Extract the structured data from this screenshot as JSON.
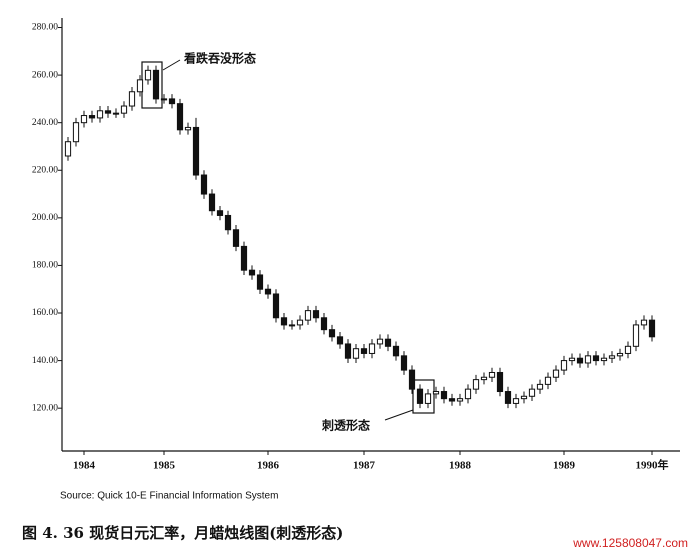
{
  "chart_data": {
    "type": "candlestick",
    "categories": [
      null,
      null,
      "1984",
      null,
      null,
      null,
      null,
      null,
      null,
      null,
      null,
      null,
      "1985",
      null,
      null,
      null,
      null,
      null,
      null,
      null,
      null,
      null,
      null,
      null,
      null,
      "1986",
      null,
      null,
      null,
      null,
      null,
      null,
      null,
      null,
      null,
      null,
      null,
      "1987",
      null,
      null,
      null,
      null,
      null,
      null,
      null,
      null,
      null,
      null,
      null,
      "1988",
      null,
      null,
      null,
      null,
      null,
      null,
      null,
      null,
      null,
      null,
      null,
      null,
      "1989",
      null,
      null,
      null,
      null,
      null,
      null,
      null,
      null,
      null,
      null,
      "1990年"
    ],
    "open": [
      226,
      232,
      240,
      243,
      242,
      245,
      244,
      244,
      247,
      253,
      258,
      262,
      250,
      250,
      248,
      237,
      238,
      218,
      210,
      203,
      201,
      195,
      188,
      178,
      176,
      170,
      168,
      158,
      155,
      155,
      157,
      161,
      158,
      153,
      150,
      147,
      141,
      145,
      143,
      147,
      149,
      146,
      142,
      136,
      128,
      122,
      126,
      127,
      124,
      123,
      124,
      128,
      132,
      133,
      135,
      127,
      122,
      124,
      125,
      128,
      130,
      133,
      136,
      140,
      141,
      139,
      142,
      140,
      141,
      142,
      143,
      146,
      155,
      157
    ],
    "high": [
      234,
      242,
      245,
      245,
      247,
      247,
      246,
      249,
      255,
      260,
      264,
      264,
      252,
      252,
      250,
      240,
      242,
      220,
      212,
      205,
      203,
      197,
      190,
      180,
      178,
      172,
      170,
      160,
      157,
      159,
      163,
      163,
      160,
      155,
      152,
      149,
      147,
      147,
      149,
      151,
      151,
      148,
      144,
      138,
      130,
      128,
      129,
      129,
      126,
      126,
      130,
      134,
      135,
      137,
      137,
      129,
      126,
      127,
      130,
      132,
      135,
      138,
      142,
      143,
      143,
      144,
      144,
      143,
      144,
      145,
      148,
      157,
      159,
      159
    ],
    "low": [
      224,
      230,
      238,
      240,
      240,
      242,
      242,
      242,
      245,
      251,
      256,
      248,
      248,
      246,
      235,
      235,
      216,
      208,
      201,
      199,
      193,
      186,
      176,
      174,
      168,
      166,
      156,
      153,
      153,
      153,
      155,
      156,
      151,
      148,
      145,
      139,
      139,
      141,
      141,
      145,
      144,
      140,
      134,
      126,
      120,
      120,
      124,
      122,
      121,
      121,
      122,
      126,
      130,
      131,
      125,
      120,
      120,
      122,
      123,
      126,
      128,
      131,
      134,
      138,
      137,
      137,
      138,
      138,
      139,
      140,
      141,
      144,
      153,
      148
    ],
    "close": [
      232,
      240,
      243,
      242,
      245,
      244,
      244,
      247,
      253,
      258,
      262,
      250,
      250,
      248,
      237,
      238,
      218,
      210,
      203,
      201,
      195,
      188,
      178,
      176,
      170,
      168,
      158,
      155,
      155,
      157,
      161,
      158,
      153,
      150,
      147,
      141,
      145,
      143,
      147,
      149,
      146,
      142,
      136,
      128,
      122,
      126,
      127,
      124,
      123,
      124,
      128,
      132,
      133,
      135,
      127,
      122,
      124,
      125,
      128,
      130,
      133,
      136,
      140,
      141,
      139,
      142,
      140,
      141,
      142,
      143,
      146,
      155,
      157,
      150
    ],
    "up_color": "#ffffff",
    "down_color": "#111111",
    "ylim": [
      102,
      284
    ],
    "yticks": [
      {
        "value": 120,
        "label": "120.00"
      },
      {
        "value": 140,
        "label": "140.00"
      },
      {
        "value": 160,
        "label": "160.00"
      },
      {
        "value": 180,
        "label": "180.00"
      },
      {
        "value": 200,
        "label": "200.00"
      },
      {
        "value": 220,
        "label": "220.00"
      },
      {
        "value": 240,
        "label": "240.00"
      },
      {
        "value": 260,
        "label": "260.00"
      },
      {
        "value": 280,
        "label": "280.00"
      }
    ],
    "annotations": [
      "看跌吞没形态",
      "刺透形态"
    ],
    "source": "Source: Quick 10-E Financial Information System",
    "caption": "图 4. 36   现货日元汇率，月蜡烛线图(刺透形态)",
    "watermark": "www.125808047.com"
  }
}
